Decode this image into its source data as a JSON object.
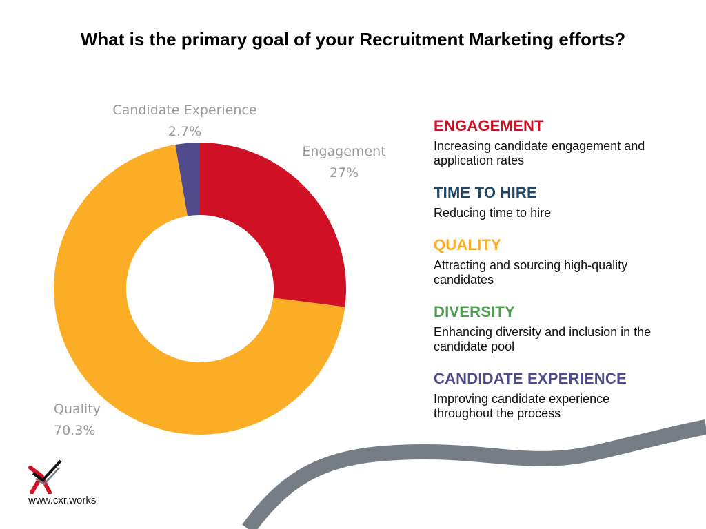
{
  "title": "What is the primary goal of your Recruitment Marketing efforts?",
  "chart_data": {
    "type": "pie",
    "donut": true,
    "title": "What is the primary goal of your Recruitment Marketing efforts?",
    "slices": [
      {
        "label": "Engagement",
        "value": 27,
        "display": "27%",
        "color": "#d01125"
      },
      {
        "label": "Quality",
        "value": 70.3,
        "display": "70.3%",
        "color": "#fbad26"
      },
      {
        "label": "Candidate Experience",
        "value": 2.7,
        "display": "2.7%",
        "color": "#514b8c"
      }
    ]
  },
  "legend": [
    {
      "heading": "ENGAGEMENT",
      "color": "#d01125",
      "description": "Increasing candidate engagement and application rates"
    },
    {
      "heading": "TIME TO HIRE",
      "color": "#1e4466",
      "description": "Reducing time to hire"
    },
    {
      "heading": "QUALITY",
      "color": "#fbad26",
      "description": "Attracting and sourcing high-quality candidates"
    },
    {
      "heading": "DIVERSITY",
      "color": "#4d9e4f",
      "description": "Enhancing diversity and inclusion in the candidate pool"
    },
    {
      "heading": "CANDIDATE EXPERIENCE",
      "color": "#514b8c",
      "description": "Improving candidate experience throughout the process"
    }
  ],
  "logo": {
    "icon": "cxr-x-check-logo-icon"
  },
  "website": "www.cxr.works",
  "colors": {
    "wave": "#767d85",
    "label_gray": "#9a9a9a"
  }
}
